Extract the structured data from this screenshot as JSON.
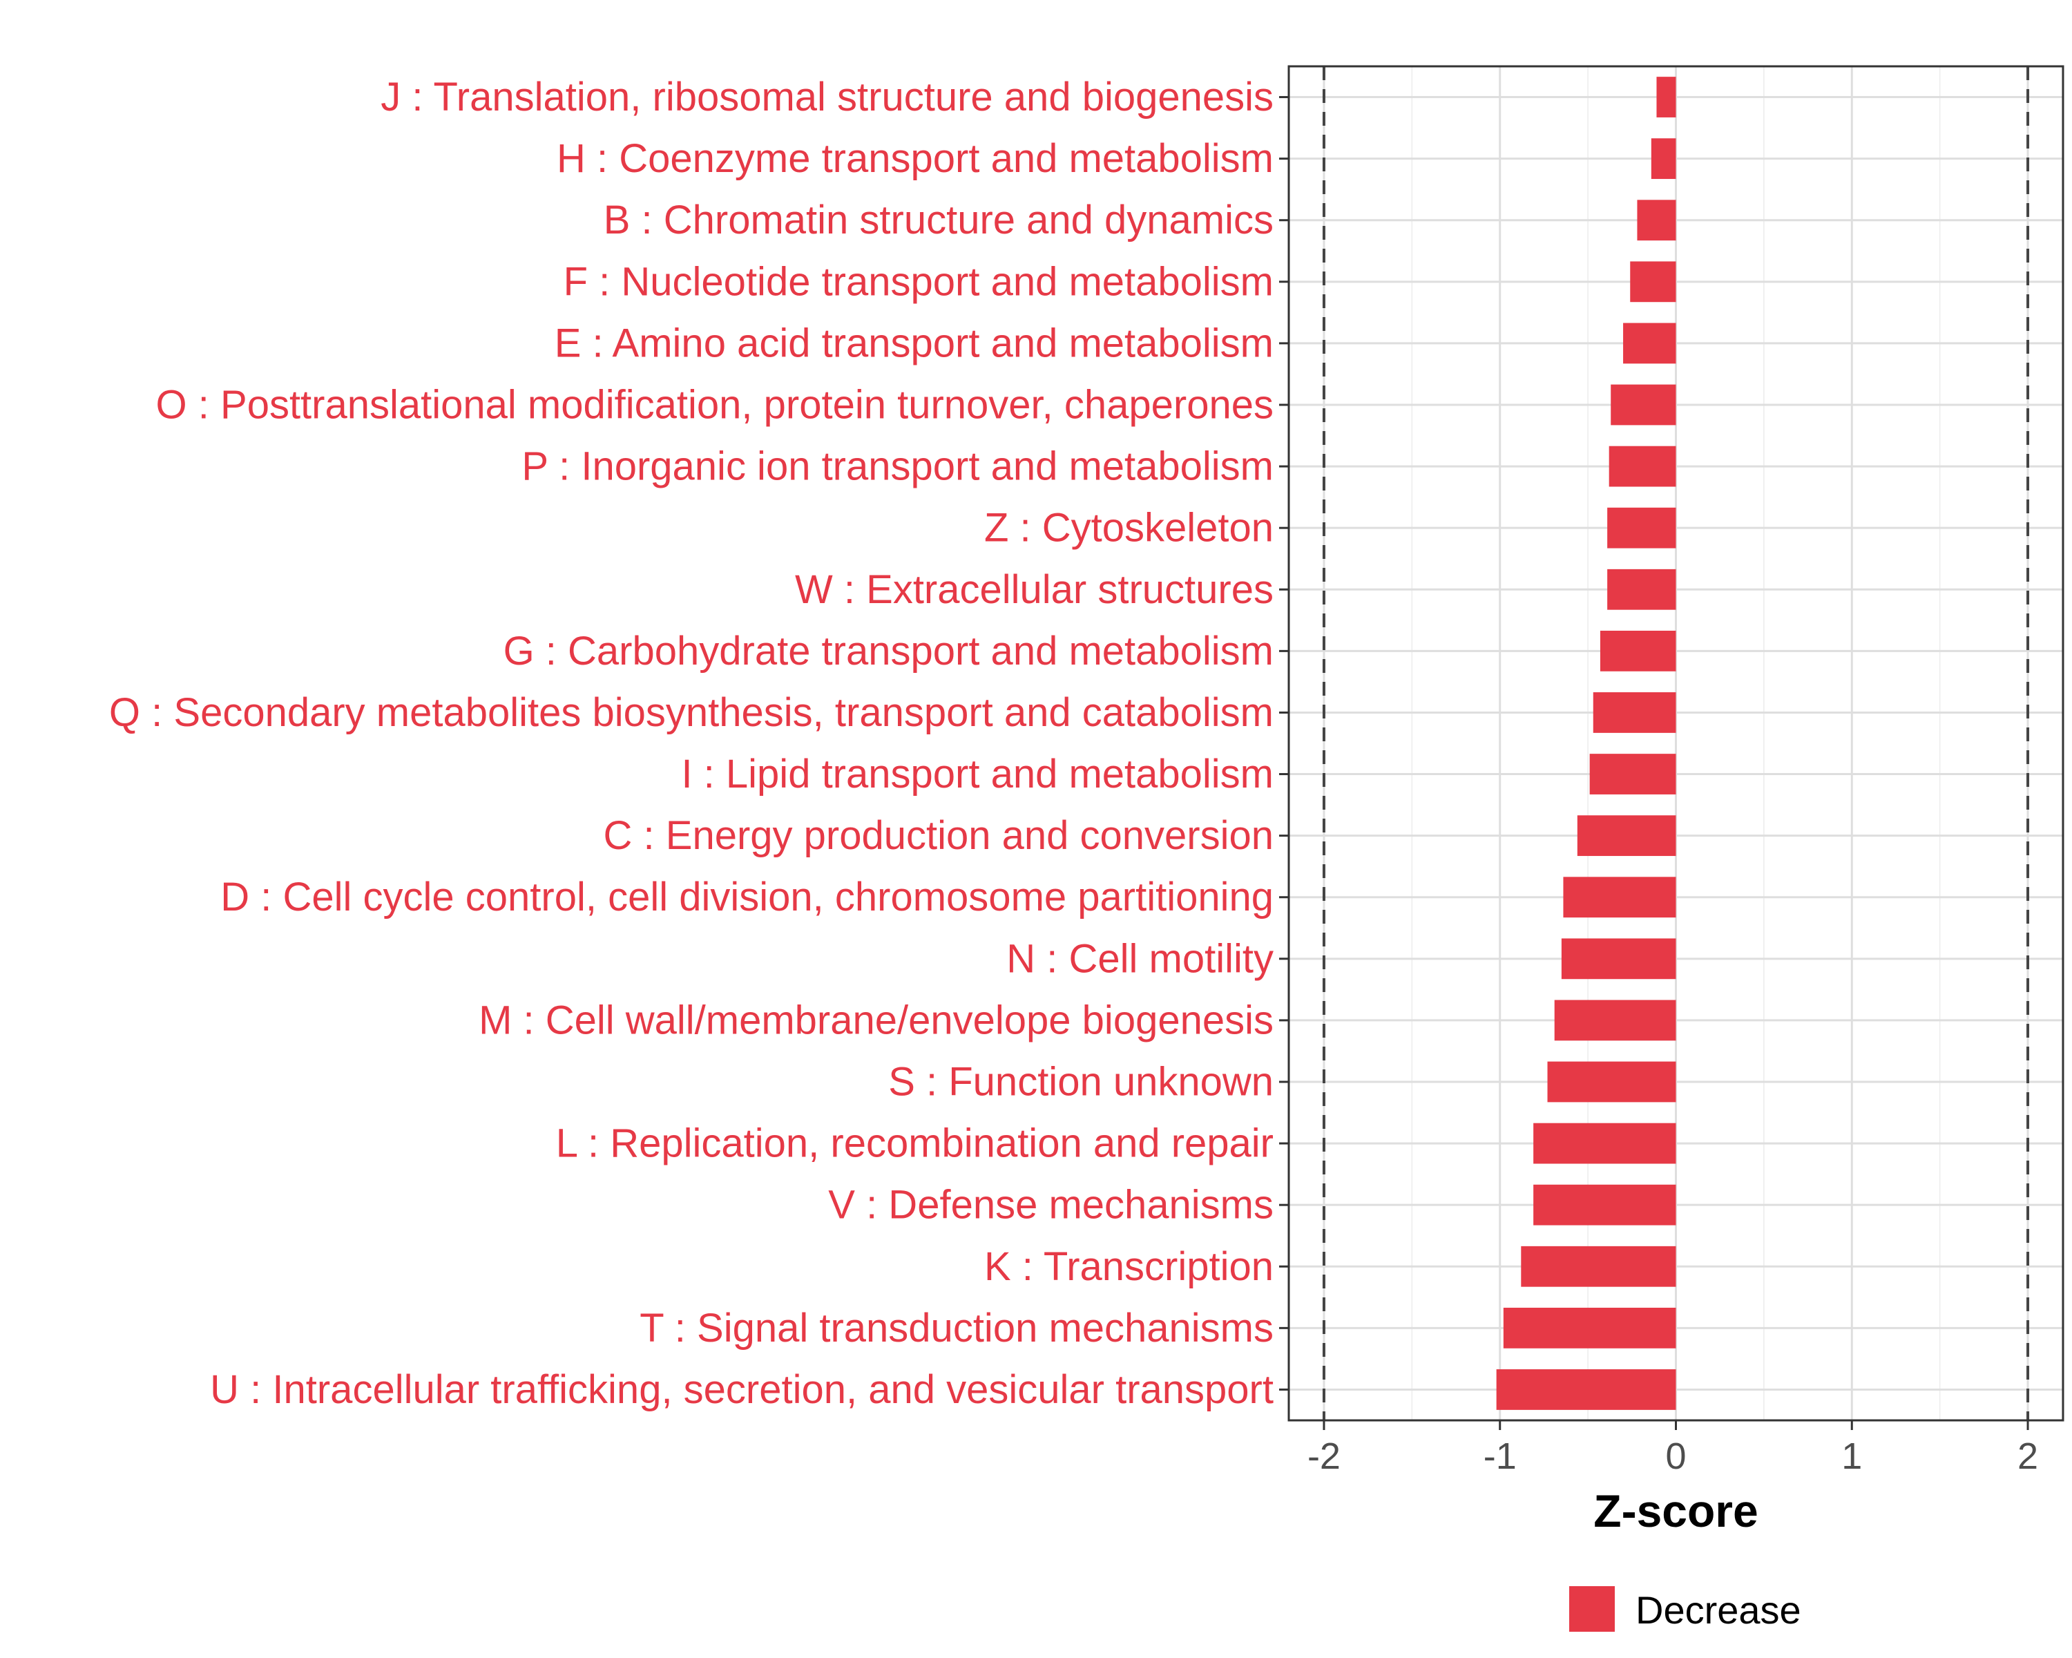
{
  "chart_data": {
    "type": "bar",
    "orientation": "horizontal",
    "title": "",
    "xlabel": "Z-score",
    "ylabel": "",
    "xlim": [
      -2.2,
      2.2
    ],
    "xticks": [
      -2,
      -1,
      0,
      1,
      2
    ],
    "xtick_labels": [
      "-2",
      "-1",
      "0",
      "1",
      "2"
    ],
    "reference_lines": [
      -2,
      2
    ],
    "grid": true,
    "categories": [
      "J : Translation, ribosomal structure and biogenesis",
      "H : Coenzyme transport and metabolism",
      "B : Chromatin structure and dynamics",
      "F : Nucleotide transport and metabolism",
      "E : Amino acid transport and metabolism",
      "O : Posttranslational modification, protein turnover, chaperones",
      "P : Inorganic ion transport and metabolism",
      "Z : Cytoskeleton",
      "W : Extracellular structures",
      "G : Carbohydrate transport and metabolism",
      "Q : Secondary metabolites biosynthesis, transport and catabolism",
      "I : Lipid transport and metabolism",
      "C : Energy production and conversion",
      "D : Cell cycle control, cell division, chromosome partitioning",
      "N : Cell motility",
      "M : Cell wall/membrane/envelope biogenesis",
      "S : Function unknown",
      "L : Replication, recombination and repair",
      "V : Defense mechanisms",
      "K : Transcription",
      "T : Signal transduction mechanisms",
      "U : Intracellular trafficking, secretion, and vesicular transport"
    ],
    "series": [
      {
        "name": "Decrease",
        "color": "#e63946",
        "values": [
          -0.11,
          -0.14,
          -0.22,
          -0.26,
          -0.3,
          -0.37,
          -0.38,
          -0.39,
          -0.39,
          -0.43,
          -0.47,
          -0.49,
          -0.56,
          -0.64,
          -0.65,
          -0.69,
          -0.73,
          -0.81,
          -0.81,
          -0.88,
          -0.98,
          -1.02
        ]
      }
    ],
    "legend": {
      "position": "bottom",
      "entries": [
        {
          "label": "Decrease",
          "color": "#e63946"
        }
      ]
    },
    "label_color": "#e63946"
  }
}
